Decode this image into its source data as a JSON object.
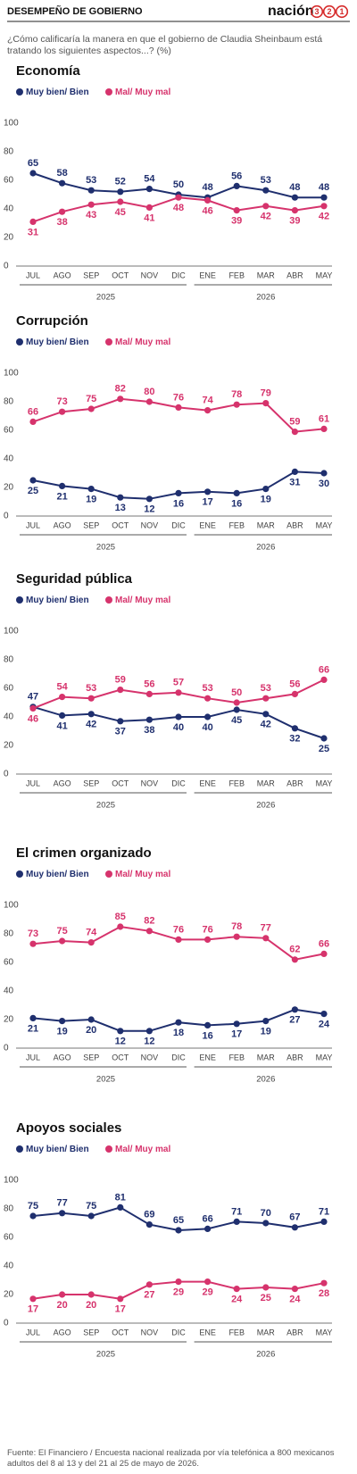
{
  "header": {
    "title": "DESEMPEÑO DE GOBIERNO",
    "brand": "nación",
    "brand_digits": [
      "3",
      "2",
      "1"
    ]
  },
  "question": "¿Cómo calificaría la manera en que el gobierno de Claudia Sheinbaum está tratando los siguientes aspectos...? (%)",
  "chart_data": [
    {
      "type": "line",
      "title": "Economía",
      "categories": [
        "JUL",
        "AGO",
        "SEP",
        "OCT",
        "NOV",
        "DIC",
        "ENE",
        "FEB",
        "MAR",
        "ABR",
        "MAY"
      ],
      "category_years": [
        "2025",
        "2025",
        "2025",
        "2025",
        "2025",
        "2025",
        "2026",
        "2026",
        "2026",
        "2026",
        "2026"
      ],
      "ylim": [
        0,
        100
      ],
      "yticks": [
        0,
        20,
        40,
        60,
        80,
        100
      ],
      "series": [
        {
          "name": "Muy bien/ Bien",
          "color": "#1f2f6e",
          "values": [
            65,
            58,
            53,
            52,
            54,
            50,
            48,
            56,
            53,
            48,
            48
          ]
        },
        {
          "name": "Mal/ Muy mal",
          "color": "#d6336c",
          "values": [
            31,
            38,
            43,
            45,
            41,
            48,
            46,
            39,
            42,
            39,
            42
          ]
        }
      ]
    },
    {
      "type": "line",
      "title": "Corrupción",
      "categories": [
        "JUL",
        "AGO",
        "SEP",
        "OCT",
        "NOV",
        "DIC",
        "ENE",
        "FEB",
        "MAR",
        "ABR",
        "MAY"
      ],
      "category_years": [
        "2025",
        "2025",
        "2025",
        "2025",
        "2025",
        "2025",
        "2026",
        "2026",
        "2026",
        "2026",
        "2026"
      ],
      "ylim": [
        0,
        100
      ],
      "yticks": [
        0,
        20,
        40,
        60,
        80,
        100
      ],
      "series": [
        {
          "name": "Muy bien/ Bien",
          "color": "#1f2f6e",
          "values": [
            25,
            21,
            19,
            13,
            12,
            16,
            17,
            16,
            19,
            31,
            30
          ]
        },
        {
          "name": "Mal/ Muy mal",
          "color": "#d6336c",
          "values": [
            66,
            73,
            75,
            82,
            80,
            76,
            74,
            78,
            79,
            59,
            61
          ]
        }
      ]
    },
    {
      "type": "line",
      "title": "Seguridad pública",
      "categories": [
        "JUL",
        "AGO",
        "SEP",
        "OCT",
        "NOV",
        "DIC",
        "ENE",
        "FEB",
        "MAR",
        "ABR",
        "MAY"
      ],
      "category_years": [
        "2025",
        "2025",
        "2025",
        "2025",
        "2025",
        "2025",
        "2026",
        "2026",
        "2026",
        "2026",
        "2026"
      ],
      "ylim": [
        0,
        100
      ],
      "yticks": [
        0,
        20,
        40,
        60,
        80,
        100
      ],
      "series": [
        {
          "name": "Muy bien/ Bien",
          "color": "#1f2f6e",
          "values": [
            47,
            41,
            42,
            37,
            38,
            40,
            40,
            45,
            42,
            32,
            25
          ]
        },
        {
          "name": "Mal/ Muy mal",
          "color": "#d6336c",
          "values": [
            46,
            54,
            53,
            59,
            56,
            57,
            53,
            50,
            53,
            56,
            66
          ]
        }
      ]
    },
    {
      "type": "line",
      "title": "El crimen organizado",
      "categories": [
        "JUL",
        "AGO",
        "SEP",
        "OCT",
        "NOV",
        "DIC",
        "ENE",
        "FEB",
        "MAR",
        "ABR",
        "MAY"
      ],
      "category_years": [
        "2025",
        "2025",
        "2025",
        "2025",
        "2025",
        "2025",
        "2026",
        "2026",
        "2026",
        "2026",
        "2026"
      ],
      "ylim": [
        0,
        100
      ],
      "yticks": [
        0,
        20,
        40,
        60,
        80,
        100
      ],
      "series": [
        {
          "name": "Muy bien/ Bien",
          "color": "#1f2f6e",
          "values": [
            21,
            19,
            20,
            12,
            12,
            18,
            16,
            17,
            19,
            27,
            24
          ]
        },
        {
          "name": "Mal/ Muy mal",
          "color": "#d6336c",
          "values": [
            73,
            75,
            74,
            85,
            82,
            76,
            76,
            78,
            77,
            62,
            66
          ]
        }
      ]
    },
    {
      "type": "line",
      "title": "Apoyos sociales",
      "categories": [
        "JUL",
        "AGO",
        "SEP",
        "OCT",
        "NOV",
        "DIC",
        "ENE",
        "FEB",
        "MAR",
        "ABR",
        "MAY"
      ],
      "category_years": [
        "2025",
        "2025",
        "2025",
        "2025",
        "2025",
        "2025",
        "2026",
        "2026",
        "2026",
        "2026",
        "2026"
      ],
      "ylim": [
        0,
        100
      ],
      "yticks": [
        0,
        20,
        40,
        60,
        80,
        100
      ],
      "series": [
        {
          "name": "Muy bien/ Bien",
          "color": "#1f2f6e",
          "values": [
            75,
            77,
            75,
            81,
            69,
            65,
            66,
            71,
            70,
            67,
            71
          ]
        },
        {
          "name": "Mal/ Muy mal",
          "color": "#d6336c",
          "values": [
            17,
            20,
            20,
            17,
            27,
            29,
            29,
            24,
            25,
            24,
            28
          ]
        }
      ]
    }
  ],
  "source": "Fuente: El Financiero / Encuesta nacional realizada por vía telefónica a 800 mexicanos adultos del 8 al 13  y del 21 al 25 de mayo de 2026."
}
